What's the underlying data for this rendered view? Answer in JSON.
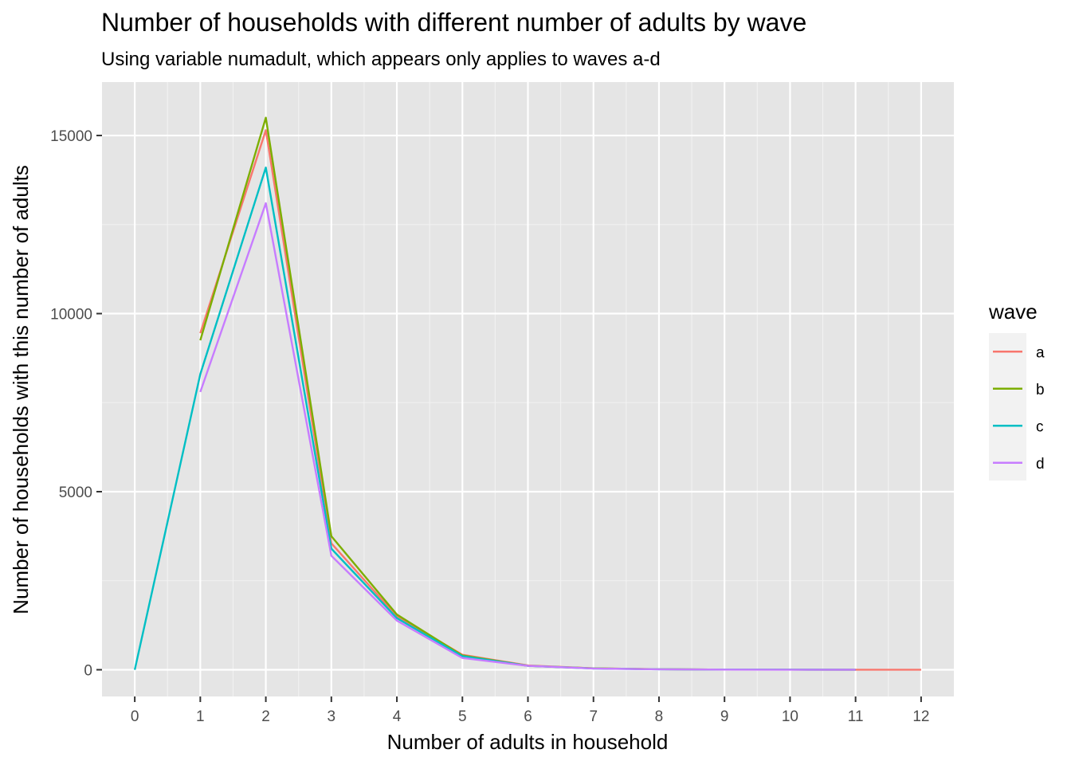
{
  "chart_data": {
    "type": "line",
    "title": "Number of households with different number of adults by wave",
    "subtitle": "Using variable numadult, which appears only applies to waves a-d",
    "xlabel": "Number of adults in household",
    "ylabel": "Number of households with this number of adults",
    "xlim": [
      -0.5,
      12.5
    ],
    "ylim": [
      -750,
      16500
    ],
    "x_ticks": [
      0,
      1,
      2,
      3,
      4,
      5,
      6,
      7,
      8,
      9,
      10,
      11,
      12
    ],
    "y_ticks": [
      0,
      5000,
      10000,
      15000
    ],
    "grid": true,
    "legend": {
      "title": "wave",
      "position": "right"
    },
    "series": [
      {
        "name": "a",
        "color": "#F8766D",
        "x": [
          1,
          2,
          3,
          4,
          5,
          6,
          7,
          8,
          9,
          10,
          11,
          12
        ],
        "y": [
          9450,
          15150,
          3550,
          1500,
          420,
          120,
          40,
          15,
          5,
          3,
          2,
          1
        ]
      },
      {
        "name": "b",
        "color": "#7CAE00",
        "x": [
          1,
          2,
          3,
          4,
          5,
          6,
          7,
          8,
          9,
          10,
          11
        ],
        "y": [
          9250,
          15500,
          3750,
          1550,
          400,
          110,
          40,
          15,
          5,
          3,
          1
        ]
      },
      {
        "name": "c",
        "color": "#00BFC4",
        "x": [
          0,
          1,
          2,
          3,
          4,
          5,
          6,
          7,
          8,
          9,
          10,
          11
        ],
        "y": [
          0,
          8300,
          14100,
          3400,
          1450,
          380,
          110,
          35,
          12,
          5,
          3,
          1
        ]
      },
      {
        "name": "d",
        "color": "#C77CFF",
        "x": [
          1,
          2,
          3,
          4,
          5,
          6,
          7,
          8,
          9,
          10,
          11
        ],
        "y": [
          7800,
          13100,
          3200,
          1380,
          330,
          110,
          35,
          12,
          4,
          2,
          1
        ]
      }
    ]
  }
}
